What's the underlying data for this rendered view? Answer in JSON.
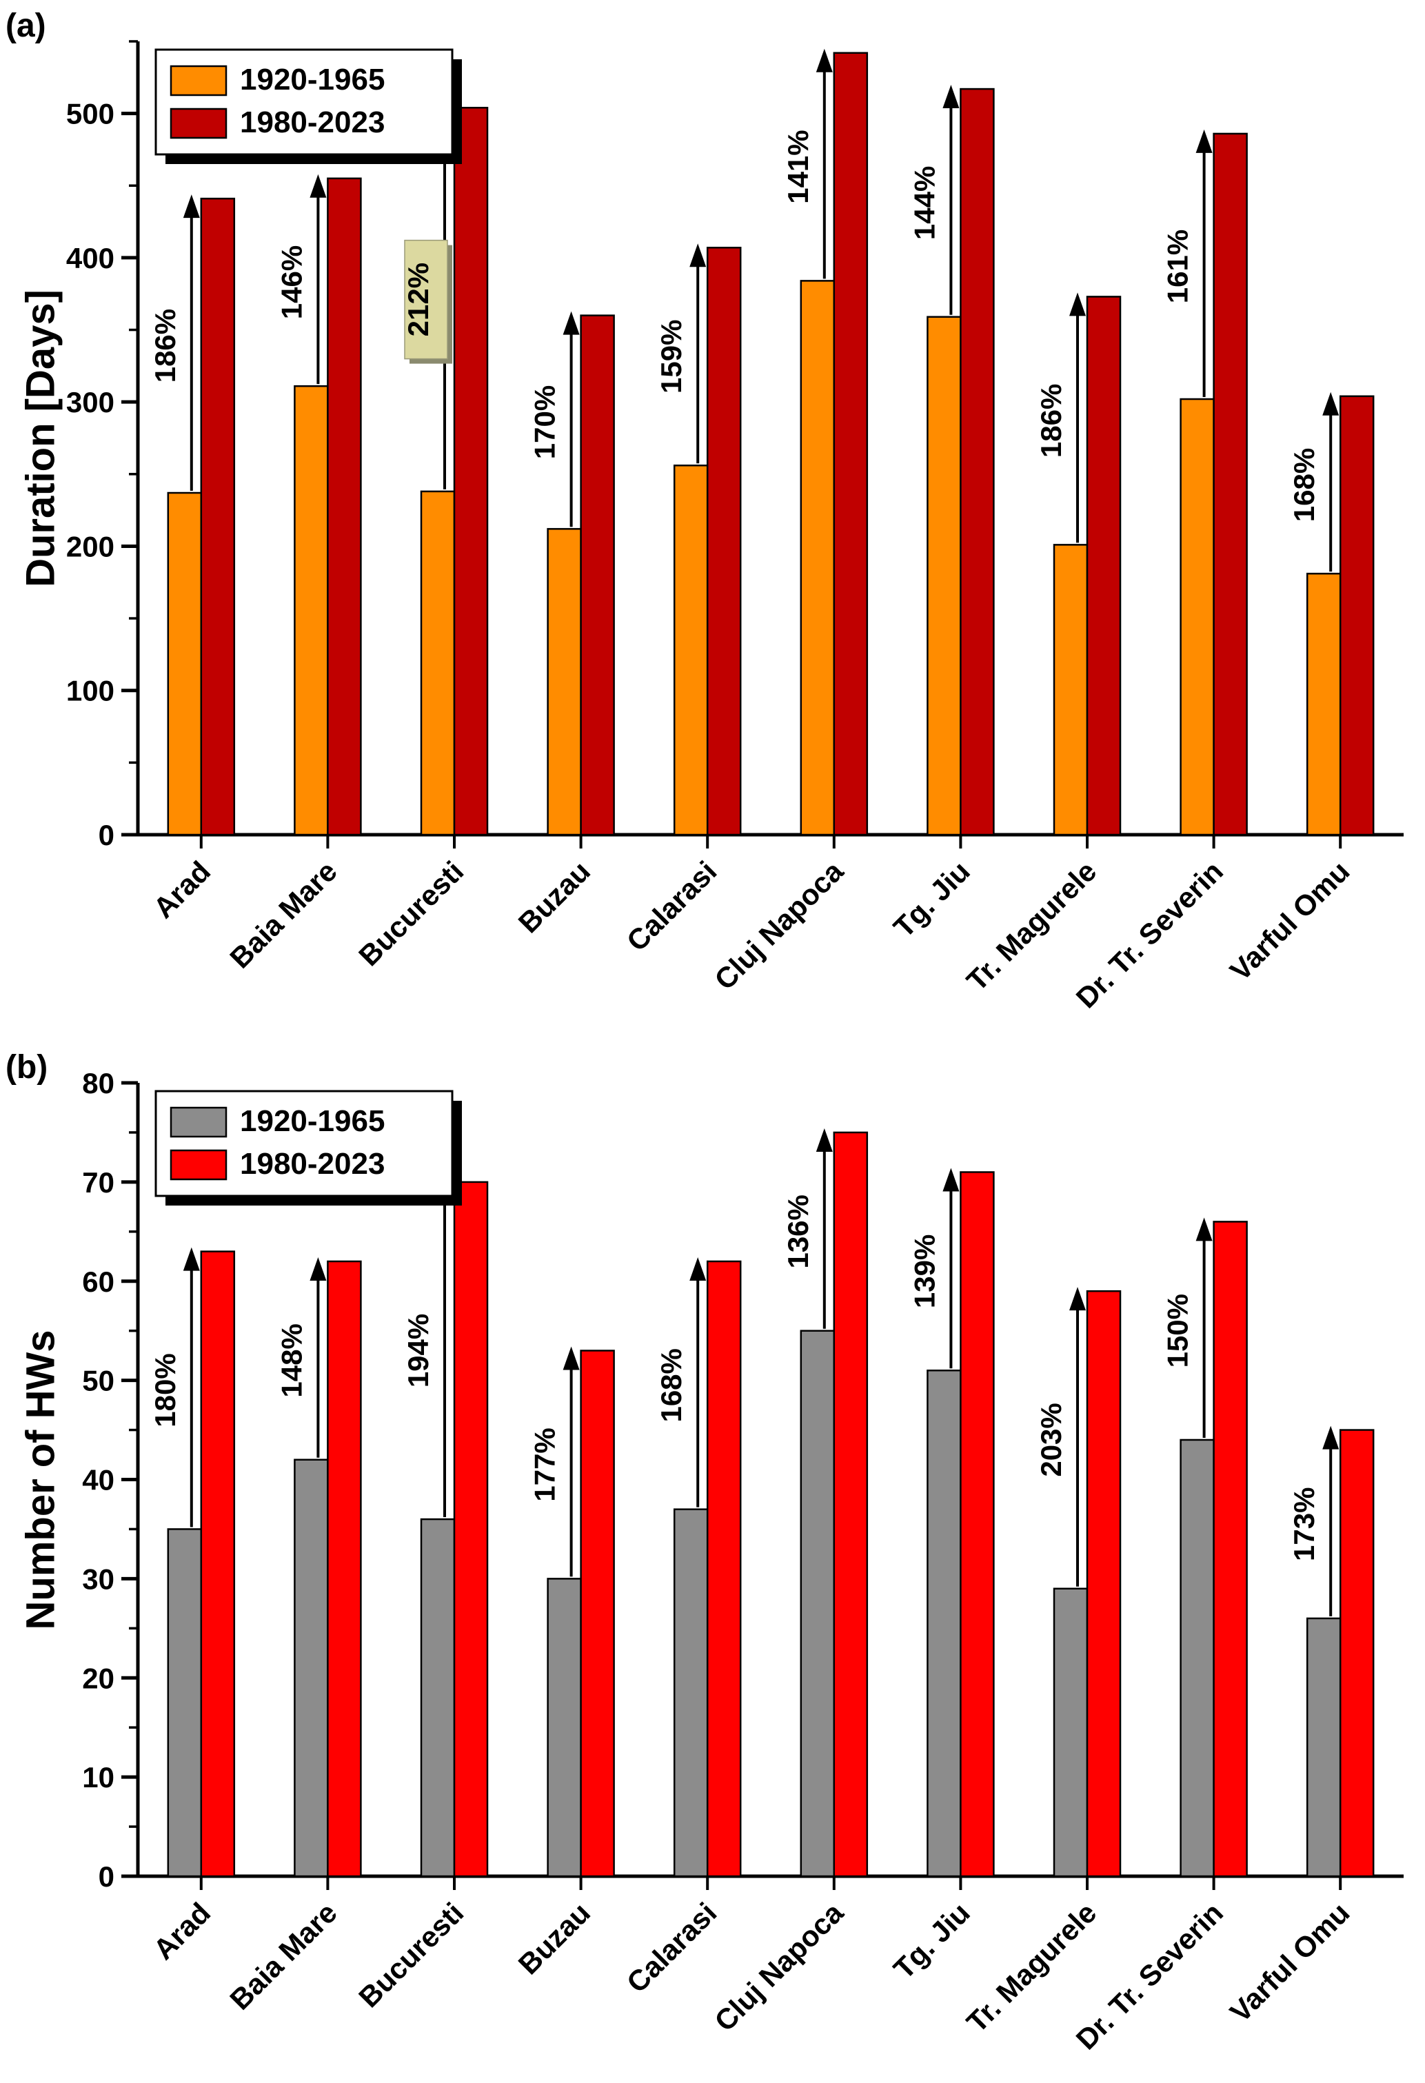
{
  "figure": {
    "type": "two-panel grouped bar chart",
    "background": "#ffffff"
  },
  "chart_data": [
    {
      "type": "bar",
      "panel_tag": "(a)",
      "ylabel": "Duration [Days]",
      "ylim": [
        0,
        550
      ],
      "ytick_step": 100,
      "yminor_step": 50,
      "grid": false,
      "legend_position": "top-left",
      "categories": [
        "Arad",
        "Baia Mare",
        "Bucuresti",
        "Buzau",
        "Calarasi",
        "Cluj Napoca",
        "Tg. Jiu",
        "Tr. Magurele",
        "Dr. Tr. Severin",
        "Varful Omu"
      ],
      "series": [
        {
          "name": "1920-1965",
          "color": "#FF8C00",
          "values": [
            237,
            311,
            238,
            212,
            256,
            384,
            359,
            201,
            302,
            181
          ]
        },
        {
          "name": "1980-2023",
          "color": "#C00000",
          "values": [
            441,
            455,
            504,
            360,
            407,
            542,
            517,
            373,
            486,
            304
          ]
        }
      ],
      "pct_labels": [
        "186%",
        "146%",
        "212%",
        "170%",
        "159%",
        "141%",
        "144%",
        "186%",
        "161%",
        "168%"
      ],
      "pct_color": "#800040",
      "pct_highlight_index": 2,
      "highlight_bg": "#DCD9A0",
      "highlight_shadow": "#8A8A6E"
    },
    {
      "type": "bar",
      "panel_tag": "(b)",
      "ylabel": "Number of HWs",
      "ylim": [
        0,
        80
      ],
      "ytick_step": 10,
      "yminor_step": 5,
      "grid": false,
      "legend_position": "top-left",
      "categories": [
        "Arad",
        "Baia Mare",
        "Bucuresti",
        "Buzau",
        "Calarasi",
        "Cluj Napoca",
        "Tg. Jiu",
        "Tr. Magurele",
        "Dr. Tr. Severin",
        "Varful Omu"
      ],
      "series": [
        {
          "name": "1920-1965",
          "color": "#8C8C8C",
          "values": [
            35,
            42,
            36,
            30,
            37,
            55,
            51,
            29,
            44,
            26
          ]
        },
        {
          "name": "1980-2023",
          "color": "#FF0000",
          "values": [
            63,
            62,
            70,
            53,
            62,
            75,
            71,
            59,
            66,
            45
          ]
        }
      ],
      "pct_labels": [
        "180%",
        "148%",
        "194%",
        "177%",
        "168%",
        "136%",
        "139%",
        "203%",
        "150%",
        "173%"
      ],
      "pct_color": "#800040",
      "pct_highlight_index": null
    }
  ]
}
